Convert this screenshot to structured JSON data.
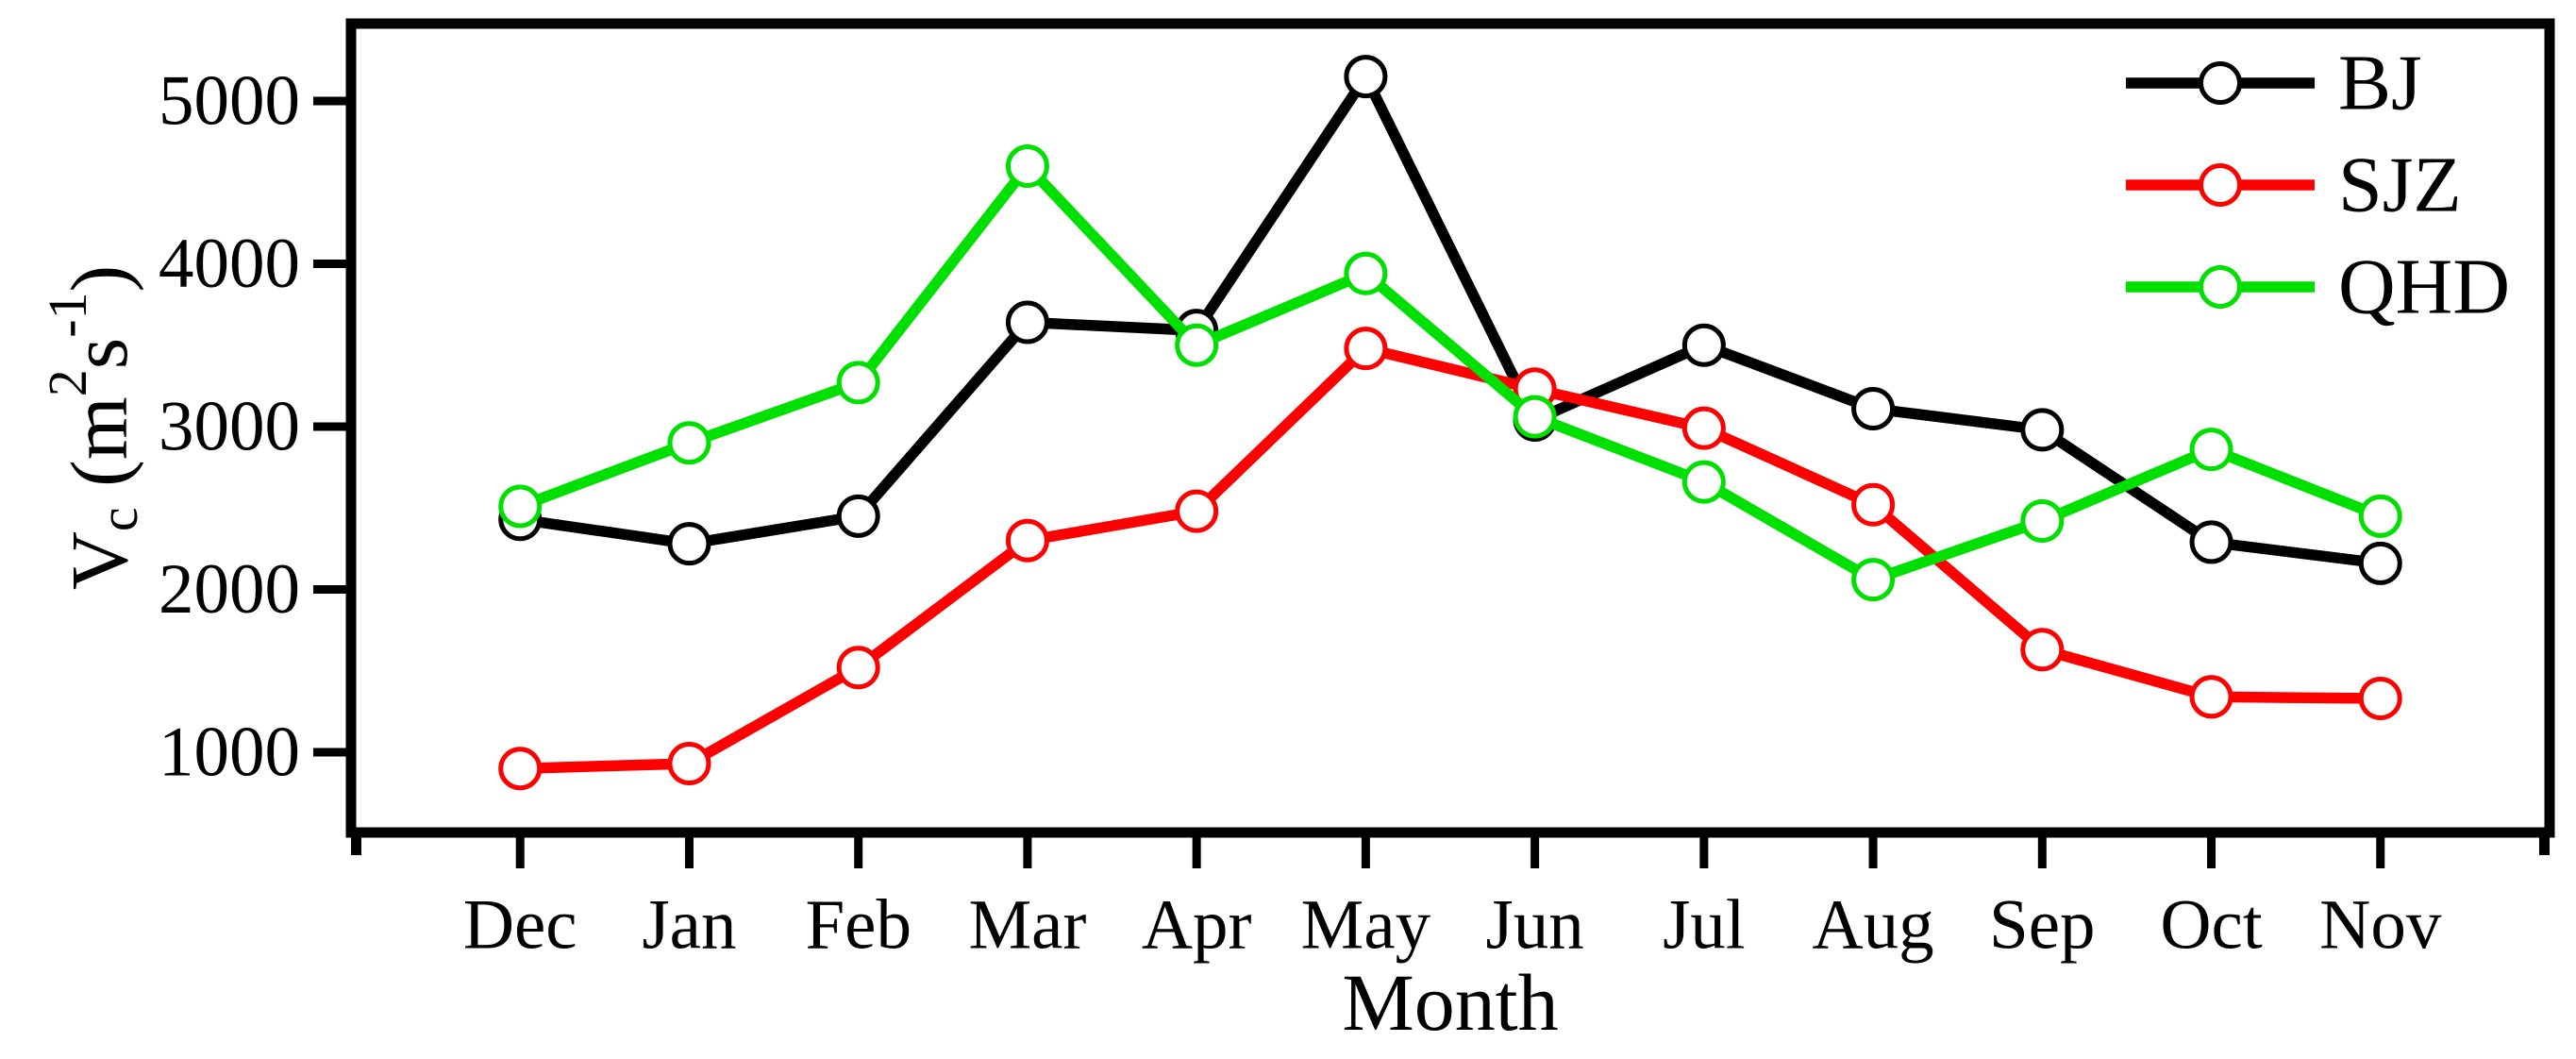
{
  "figure": {
    "background": "#ffffff"
  },
  "chart_data": {
    "type": "line",
    "title": "",
    "xlabel": "Month",
    "ylabel": "Vc (m2 s-1)",
    "ylabel_rich": [
      {
        "t": "V",
        "style": "normal"
      },
      {
        "t": "c",
        "style": "sub"
      },
      {
        "t": " (m",
        "style": "normal"
      },
      {
        "t": "2",
        "style": "sup"
      },
      {
        "t": "s",
        "style": "normal"
      },
      {
        "t": "-1",
        "style": "sup"
      },
      {
        "t": ")",
        "style": "normal"
      }
    ],
    "categories": [
      "Dec",
      "Jan",
      "Feb",
      "Mar",
      "Apr",
      "May",
      "Jun",
      "Jul",
      "Aug",
      "Sep",
      "Oct",
      "Nov"
    ],
    "series": [
      {
        "name": "BJ",
        "color": "#000000",
        "values": [
          2430,
          2280,
          2450,
          3640,
          3590,
          5150,
          3040,
          3500,
          3110,
          2980,
          2290,
          2160
        ]
      },
      {
        "name": "SJZ",
        "color": "#ff0000",
        "values": [
          900,
          930,
          1520,
          2300,
          2480,
          3480,
          3230,
          2990,
          2520,
          1630,
          1340,
          1330
        ]
      },
      {
        "name": "QHD",
        "color": "#00e000",
        "values": [
          2510,
          2900,
          3270,
          4600,
          3500,
          3940,
          3060,
          2660,
          2060,
          2420,
          2860,
          2450
        ]
      }
    ],
    "y_ticks": [
      "1000",
      "2000",
      "3000",
      "4000",
      "5000"
    ],
    "y_tick_values": [
      1000,
      2000,
      3000,
      4000,
      5000
    ],
    "ylim": [
      507,
      5475
    ],
    "x_slots": 13,
    "grid": false,
    "legend_position": "top-right",
    "marker": "open-circle"
  }
}
